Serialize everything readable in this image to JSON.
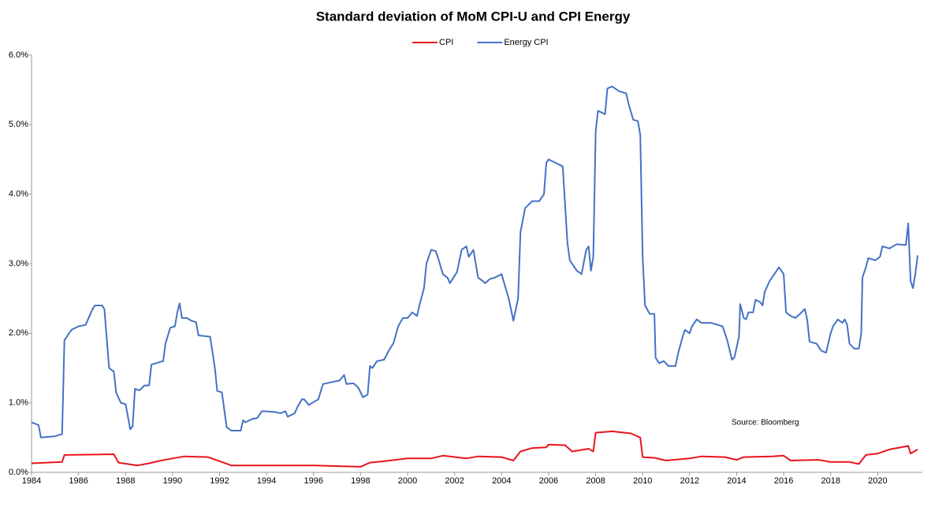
{
  "chart_data": {
    "type": "line",
    "title": "Standard deviation of MoM CPI-U and CPI Energy",
    "annotation": "Source: Bloomberg",
    "grid": false,
    "legend": "top",
    "xlim": [
      1984,
      2021.9
    ],
    "xticks": [
      1984,
      1986,
      1988,
      1990,
      1992,
      1994,
      1996,
      1998,
      2000,
      2002,
      2004,
      2006,
      2008,
      2010,
      2012,
      2014,
      2016,
      2018,
      2020
    ],
    "ylim": [
      0,
      6
    ],
    "yticks": [
      {
        "value": 0,
        "label": "0.0%"
      },
      {
        "value": 1,
        "label": "1.0%"
      },
      {
        "value": 2,
        "label": "2.0%"
      },
      {
        "value": 3,
        "label": "3.0%"
      },
      {
        "value": 4,
        "label": "4.0%"
      },
      {
        "value": 5,
        "label": "5.0%"
      },
      {
        "value": 6,
        "label": "6.0%"
      }
    ],
    "series": [
      {
        "name": "CPI",
        "color": "#e8141c",
        "x": [
          1984,
          1985.3,
          1985.4,
          1987.5,
          1987.7,
          1988.5,
          1989,
          1989.5,
          1990,
          1990.5,
          1991.5,
          1992.1,
          1992.5,
          1994,
          1996,
          1998,
          1998.4,
          1999,
          2000,
          2001,
          2001.5,
          2002.5,
          2003,
          2004,
          2004.5,
          2004.8,
          2005.3,
          2005.9,
          2006,
          2006.7,
          2007,
          2007.7,
          2007.9,
          2008,
          2008.7,
          2009.5,
          2009.9,
          2010,
          2010.5,
          2011,
          2012,
          2012.5,
          2013.5,
          2014,
          2014.3,
          2015.5,
          2016,
          2016.3,
          2017.5,
          2018,
          2018.8,
          2019.2,
          2019.5,
          2020,
          2020.5,
          2021.3,
          2021.4,
          2021.7
        ],
        "values": [
          0.13,
          0.15,
          0.25,
          0.26,
          0.14,
          0.1,
          0.13,
          0.17,
          0.2,
          0.23,
          0.22,
          0.15,
          0.1,
          0.1,
          0.1,
          0.08,
          0.14,
          0.16,
          0.2,
          0.2,
          0.24,
          0.2,
          0.23,
          0.22,
          0.17,
          0.3,
          0.35,
          0.36,
          0.4,
          0.39,
          0.3,
          0.34,
          0.3,
          0.57,
          0.59,
          0.56,
          0.5,
          0.22,
          0.21,
          0.17,
          0.2,
          0.23,
          0.22,
          0.18,
          0.22,
          0.23,
          0.24,
          0.17,
          0.18,
          0.15,
          0.15,
          0.12,
          0.25,
          0.27,
          0.33,
          0.38,
          0.27,
          0.33
        ]
      },
      {
        "name": "Energy CPI",
        "color": "#4472c4",
        "x": [
          1984,
          1984.3,
          1984.4,
          1985,
          1985.3,
          1985.4,
          1985.7,
          1986,
          1986.3,
          1986.6,
          1986.7,
          1987,
          1987.1,
          1987.3,
          1987.5,
          1987.6,
          1987.8,
          1988,
          1988.2,
          1988.3,
          1988.4,
          1988.6,
          1988.8,
          1989,
          1989.1,
          1989.4,
          1989.6,
          1989.7,
          1989.9,
          1990.1,
          1990.2,
          1990.3,
          1990.4,
          1990.6,
          1990.8,
          1991,
          1991.1,
          1991.6,
          1991.8,
          1991.9,
          1992.1,
          1992.3,
          1992.5,
          1992.9,
          1993,
          1993.1,
          1993.4,
          1993.6,
          1993.8,
          1994.3,
          1994.6,
          1994.8,
          1994.9,
          1995.2,
          1995.3,
          1995.5,
          1995.6,
          1995.8,
          1996.2,
          1996.4,
          1996.8,
          1997.1,
          1997.3,
          1997.4,
          1997.7,
          1997.9,
          1998.1,
          1998.3,
          1998.4,
          1998.5,
          1998.7,
          1999,
          1999.2,
          1999.4,
          1999.6,
          1999.8,
          2000,
          2000.2,
          2000.4,
          2000.5,
          2000.7,
          2000.8,
          2001,
          2001.2,
          2001.3,
          2001.5,
          2001.7,
          2001.8,
          2002.1,
          2002.3,
          2002.5,
          2002.6,
          2002.8,
          2003,
          2003.2,
          2003.3,
          2003.5,
          2003.7,
          2004,
          2004.3,
          2004.5,
          2004.7,
          2004.8,
          2005,
          2005.3,
          2005.6,
          2005.8,
          2005.9,
          2006,
          2006.3,
          2006.6,
          2006.8,
          2006.9,
          2007.2,
          2007.4,
          2007.6,
          2007.7,
          2007.8,
          2007.9,
          2008,
          2008.1,
          2008.4,
          2008.5,
          2008.7,
          2009,
          2009.3,
          2009.4,
          2009.6,
          2009.8,
          2009.9,
          2010,
          2010.1,
          2010.3,
          2010.5,
          2010.55,
          2010.7,
          2010.9,
          2011.1,
          2011.4,
          2011.5,
          2011.7,
          2011.8,
          2012,
          2012.1,
          2012.3,
          2012.5,
          2012.9,
          2013.2,
          2013.4,
          2013.6,
          2013.8,
          2013.9,
          2014.1,
          2014.15,
          2014.3,
          2014.4,
          2014.5,
          2014.7,
          2014.8,
          2015,
          2015.1,
          2015.2,
          2015.4,
          2015.6,
          2015.8,
          2016,
          2016.1,
          2016.3,
          2016.5,
          2016.7,
          2016.9,
          2017,
          2017.1,
          2017.4,
          2017.6,
          2017.8,
          2018,
          2018.1,
          2018.3,
          2018.5,
          2018.6,
          2018.7,
          2018.8,
          2019,
          2019.2,
          2019.3,
          2019.35,
          2019.5,
          2019.6,
          2019.9,
          2020.1,
          2020.2,
          2020.5,
          2020.8,
          2021.2,
          2021.3,
          2021.4,
          2021.5,
          2021.6,
          2021.7
        ],
        "values": [
          0.72,
          0.68,
          0.5,
          0.52,
          0.55,
          1.9,
          2.05,
          2.1,
          2.12,
          2.35,
          2.4,
          2.4,
          2.35,
          1.5,
          1.45,
          1.15,
          1.0,
          0.98,
          0.62,
          0.66,
          1.2,
          1.18,
          1.25,
          1.25,
          1.55,
          1.58,
          1.6,
          1.85,
          2.08,
          2.1,
          2.3,
          2.43,
          2.22,
          2.22,
          2.18,
          2.16,
          1.97,
          1.95,
          1.5,
          1.17,
          1.15,
          0.65,
          0.6,
          0.6,
          0.75,
          0.72,
          0.77,
          0.78,
          0.88,
          0.87,
          0.85,
          0.88,
          0.8,
          0.85,
          0.93,
          1.05,
          1.05,
          0.97,
          1.05,
          1.27,
          1.3,
          1.32,
          1.4,
          1.27,
          1.28,
          1.22,
          1.08,
          1.12,
          1.53,
          1.5,
          1.6,
          1.62,
          1.75,
          1.86,
          2.1,
          2.22,
          2.22,
          2.3,
          2.25,
          2.4,
          2.65,
          3.0,
          3.2,
          3.18,
          3.08,
          2.85,
          2.8,
          2.72,
          2.88,
          3.2,
          3.25,
          3.1,
          3.2,
          2.8,
          2.75,
          2.72,
          2.78,
          2.8,
          2.85,
          2.5,
          2.18,
          2.5,
          3.45,
          3.8,
          3.9,
          3.9,
          4.0,
          4.45,
          4.5,
          4.45,
          4.4,
          3.3,
          3.05,
          2.9,
          2.85,
          3.2,
          3.25,
          2.9,
          3.1,
          4.9,
          5.2,
          5.15,
          5.52,
          5.55,
          5.48,
          5.45,
          5.3,
          5.07,
          5.05,
          4.85,
          3.1,
          2.4,
          2.28,
          2.28,
          1.65,
          1.57,
          1.6,
          1.53,
          1.53,
          1.7,
          1.95,
          2.05,
          2.0,
          2.1,
          2.2,
          2.15,
          2.15,
          2.12,
          2.1,
          1.9,
          1.62,
          1.65,
          1.95,
          2.42,
          2.22,
          2.2,
          2.3,
          2.3,
          2.48,
          2.45,
          2.4,
          2.6,
          2.75,
          2.85,
          2.95,
          2.85,
          2.3,
          2.25,
          2.22,
          2.28,
          2.35,
          2.2,
          1.88,
          1.85,
          1.75,
          1.72,
          2.0,
          2.1,
          2.2,
          2.15,
          2.2,
          2.12,
          1.85,
          1.78,
          1.78,
          2.0,
          2.8,
          2.95,
          3.08,
          3.05,
          3.1,
          3.25,
          3.22,
          3.28,
          3.27,
          3.58,
          2.75,
          2.65,
          2.85,
          3.12
        ]
      }
    ]
  }
}
